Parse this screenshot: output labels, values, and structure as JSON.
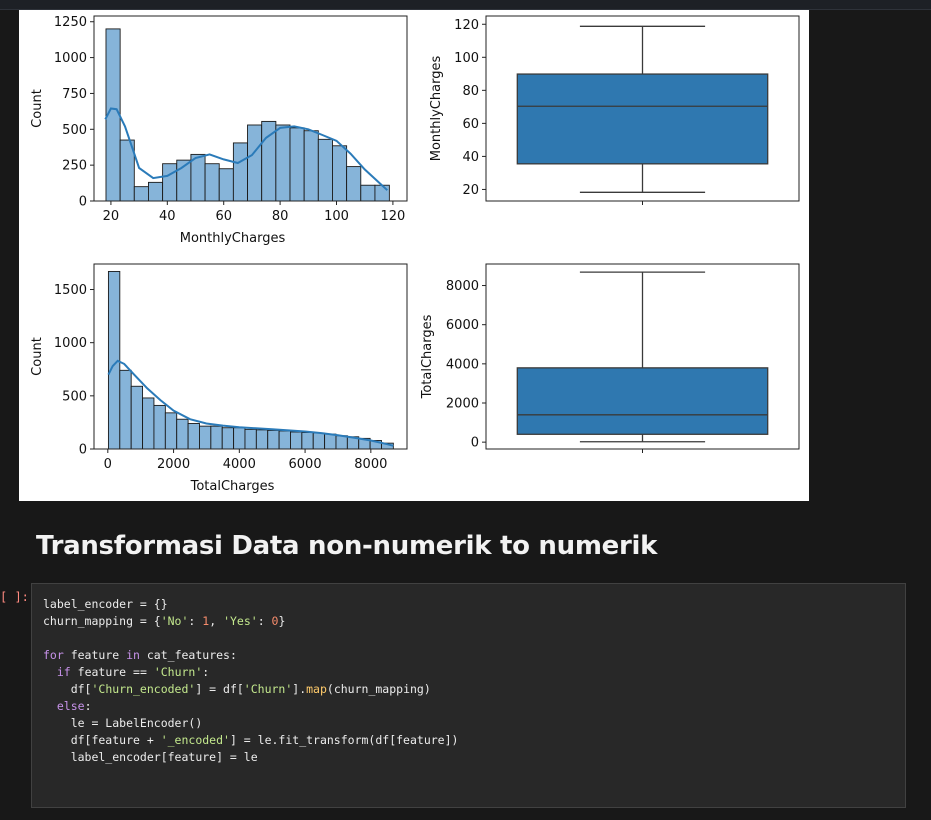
{
  "chart_data": [
    {
      "type": "histogram",
      "xlabel": "MonthlyCharges",
      "ylabel": "Count",
      "xlim": [
        14,
        125
      ],
      "ylim": [
        0,
        1290
      ],
      "yticks": [
        0,
        250,
        500,
        750,
        1000,
        1250
      ],
      "xticks": [
        20,
        40,
        60,
        80,
        100,
        120
      ],
      "bin_edges": [
        18.25,
        23.27,
        28.29,
        33.31,
        38.33,
        43.35,
        48.37,
        53.39,
        58.41,
        63.43,
        68.45,
        73.47,
        78.49,
        83.51,
        88.53,
        93.55,
        98.57,
        103.59,
        108.61,
        113.63,
        118.75
      ],
      "counts": [
        1200,
        425,
        100,
        130,
        260,
        285,
        325,
        260,
        225,
        405,
        530,
        555,
        530,
        510,
        490,
        430,
        385,
        240,
        110,
        110
      ],
      "kde": [
        [
          18,
          570
        ],
        [
          20,
          645
        ],
        [
          22,
          640
        ],
        [
          25,
          520
        ],
        [
          30,
          230
        ],
        [
          35,
          160
        ],
        [
          40,
          175
        ],
        [
          45,
          230
        ],
        [
          50,
          300
        ],
        [
          55,
          325
        ],
        [
          60,
          290
        ],
        [
          65,
          265
        ],
        [
          70,
          320
        ],
        [
          75,
          440
        ],
        [
          80,
          510
        ],
        [
          85,
          520
        ],
        [
          90,
          500
        ],
        [
          95,
          460
        ],
        [
          100,
          420
        ],
        [
          105,
          330
        ],
        [
          110,
          220
        ],
        [
          115,
          130
        ],
        [
          118,
          75
        ]
      ]
    },
    {
      "type": "boxplot",
      "ylabel": "MonthlyCharges",
      "ylim": [
        13,
        125
      ],
      "yticks": [
        20,
        40,
        60,
        80,
        100,
        120
      ],
      "min": 18.25,
      "q1": 35.5,
      "median": 70.35,
      "q3": 89.85,
      "max": 118.75
    },
    {
      "type": "histogram",
      "xlabel": "TotalCharges",
      "ylabel": "Count",
      "xlim": [
        -420,
        9100
      ],
      "ylim": [
        0,
        1740
      ],
      "yticks": [
        0,
        500,
        1000,
        1500
      ],
      "xticks": [
        0,
        2000,
        4000,
        6000,
        8000
      ],
      "bin_edges": [
        18.8,
        365,
        711,
        1057,
        1403,
        1750,
        2096,
        2442,
        2788,
        3134,
        3480,
        3826,
        4172,
        4518,
        4864,
        5210,
        5556,
        5902,
        6248,
        6594,
        6940,
        7286,
        7632,
        7978,
        8324,
        8684.8
      ],
      "counts": [
        1670,
        740,
        590,
        480,
        410,
        340,
        280,
        240,
        215,
        215,
        200,
        200,
        185,
        180,
        175,
        170,
        160,
        155,
        150,
        140,
        125,
        115,
        100,
        80,
        55
      ],
      "kde": [
        [
          18,
          700
        ],
        [
          150,
          780
        ],
        [
          300,
          830
        ],
        [
          500,
          800
        ],
        [
          800,
          700
        ],
        [
          1200,
          570
        ],
        [
          1600,
          460
        ],
        [
          2000,
          360
        ],
        [
          2500,
          280
        ],
        [
          3000,
          240
        ],
        [
          3500,
          220
        ],
        [
          4000,
          205
        ],
        [
          4500,
          195
        ],
        [
          5000,
          185
        ],
        [
          5500,
          175
        ],
        [
          6000,
          165
        ],
        [
          6500,
          150
        ],
        [
          7000,
          130
        ],
        [
          7500,
          105
        ],
        [
          8000,
          80
        ],
        [
          8500,
          45
        ],
        [
          8684,
          30
        ]
      ]
    },
    {
      "type": "boxplot",
      "ylabel": "TotalCharges",
      "ylim": [
        -350,
        9100
      ],
      "yticks": [
        0,
        2000,
        4000,
        6000,
        8000
      ],
      "min": 18.8,
      "q1": 401.45,
      "median": 1397.47,
      "q3": 3794.74,
      "max": 8684.8
    }
  ],
  "markdown": {
    "heading": "Transformasi Data non-numerik to numerik"
  },
  "cell": {
    "prompt": "[ ]:",
    "source": "label_encoder = {}\nchurn_mapping = {'No': 1, 'Yes': 0}\n\nfor feature in cat_features:\n  if feature == 'Churn':\n    df['Churn_encoded'] = df['Churn'].map(churn_mapping)\n  else:\n    le = LabelEncoder()\n    df[feature + '_encoded'] = le.fit_transform(df[feature])\n    label_encoder[feature] = le"
  },
  "colors": {
    "bar_fill": "#86b4d9",
    "bar_edge": "#1a1a1a",
    "kde_line": "#2b7bb9",
    "box_fill": "#2f78b0",
    "line_dark": "#3a3a3a",
    "keyword": "#c792ea",
    "string": "#c3e88d",
    "number": "#f78c6c",
    "function": "#ffcb6b"
  }
}
